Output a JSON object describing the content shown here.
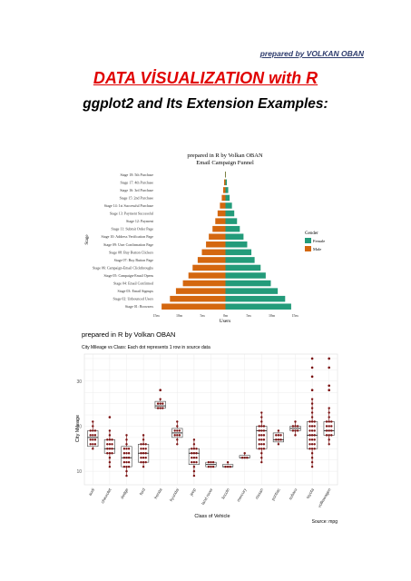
{
  "header": {
    "byline": "prepared by VOLKAN OBAN",
    "title": "DATA VİSUALIZATION with R",
    "subtitle": "ggplot2 and Its Extension Examples:"
  },
  "colors": {
    "red_title": "#e00000",
    "byline_blue": "#2f3d6e",
    "female": "#239b7a",
    "male": "#d4670f",
    "box": "#7a1010"
  },
  "chart_data": [
    {
      "type": "bar",
      "title": "prepared in R by Volkan OBAN",
      "subtitle": "Email Campaign Funnel",
      "xlabel": "Users",
      "ylabel": "Stage",
      "x_ticks": [
        "15m",
        "10m",
        "5m",
        "0m",
        "5m",
        "10m",
        "15m"
      ],
      "xlim": [
        -15,
        15
      ],
      "legend": {
        "title": "Gender",
        "position": "right",
        "entries": [
          "Female",
          "Male"
        ]
      },
      "categories": [
        "Stage 01: Browsers",
        "Stage 02: Unbounced Users",
        "Stage 03: Email Signups",
        "Stage 04: Email Confirmed",
        "Stage 05: Campaign-Email Opens",
        "Stage 06: Campaign-Email Clickthroughs",
        "Stage 07: Buy Button Page",
        "Stage 08: Buy Button Clickers",
        "Stage 09: User Confirmation Page",
        "Stage 10: Address Verification Page",
        "Stage 11: Submit Order Page",
        "Stage 12: Payment",
        "Stage 13: Payment Successful",
        "Stage 14: 1st Successful Purchase",
        "Stage 15: 2nd Purchase",
        "Stage 16: 3rd Purchase",
        "Stage 17: 4th Purchase",
        "Stage 18: 5th Purchase"
      ],
      "series": [
        {
          "name": "Female",
          "values": [
            14.2,
            12.9,
            11.3,
            9.8,
            8.7,
            7.6,
            6.3,
            5.6,
            4.7,
            3.9,
            3.1,
            2.5,
            1.9,
            1.4,
            0.9,
            0.6,
            0.3,
            0.1
          ]
        },
        {
          "name": "Male",
          "values": [
            13.8,
            12.0,
            10.7,
            9.2,
            8.0,
            7.1,
            6.0,
            5.1,
            4.2,
            3.6,
            2.8,
            2.2,
            1.7,
            1.2,
            0.8,
            0.5,
            0.3,
            0.1
          ]
        }
      ]
    },
    {
      "type": "box",
      "plot_title": "prepared in R by Volkan OBAN",
      "subtitle": "City Mileage vs Class: Each dot represents 1 row in source data",
      "xlabel": "Class of Vehicle",
      "ylabel": "City Mileage",
      "caption": "Source: mpg",
      "y_ticks": [
        10,
        20,
        30
      ],
      "ylim": [
        7,
        36
      ],
      "categories": [
        "audi",
        "chevrolet",
        "dodge",
        "ford",
        "honda",
        "hyundai",
        "jeep",
        "land rover",
        "lincoln",
        "mercury",
        "nissan",
        "pontiac",
        "subaru",
        "toyota",
        "volkswagen"
      ],
      "boxes": [
        {
          "q1": 15.5,
          "median": 17.5,
          "q3": 19.0,
          "min": 15,
          "max": 21,
          "outliers": []
        },
        {
          "q1": 14.0,
          "median": 15.0,
          "q3": 17.0,
          "min": 11,
          "max": 19,
          "outliers": [
            22
          ]
        },
        {
          "q1": 11.0,
          "median": 13.0,
          "q3": 15.5,
          "min": 9,
          "max": 18,
          "outliers": []
        },
        {
          "q1": 12.0,
          "median": 14.0,
          "q3": 16.0,
          "min": 11,
          "max": 18,
          "outliers": []
        },
        {
          "q1": 24.0,
          "median": 24.5,
          "q3": 25.5,
          "min": 24,
          "max": 26,
          "outliers": [
            28
          ]
        },
        {
          "q1": 17.5,
          "median": 18.5,
          "q3": 19.5,
          "min": 16,
          "max": 21,
          "outliers": []
        },
        {
          "q1": 11.5,
          "median": 14.0,
          "q3": 15.0,
          "min": 9,
          "max": 17,
          "outliers": []
        },
        {
          "q1": 11.0,
          "median": 11.5,
          "q3": 12.0,
          "min": 11,
          "max": 12,
          "outliers": []
        },
        {
          "q1": 11.0,
          "median": 11.0,
          "q3": 11.5,
          "min": 11,
          "max": 12,
          "outliers": []
        },
        {
          "q1": 13.0,
          "median": 13.0,
          "q3": 13.5,
          "min": 13,
          "max": 14,
          "outliers": []
        },
        {
          "q1": 15.0,
          "median": 19.0,
          "q3": 20.0,
          "min": 12,
          "max": 23,
          "outliers": []
        },
        {
          "q1": 16.5,
          "median": 17.0,
          "q3": 18.5,
          "min": 16,
          "max": 19,
          "outliers": []
        },
        {
          "q1": 19.0,
          "median": 19.5,
          "q3": 20.0,
          "min": 18,
          "max": 21,
          "outliers": []
        },
        {
          "q1": 15.0,
          "median": 18.0,
          "q3": 21.0,
          "min": 11,
          "max": 26,
          "outliers": [
            28,
            31,
            33,
            35
          ]
        },
        {
          "q1": 18.0,
          "median": 19.0,
          "q3": 21.0,
          "min": 16,
          "max": 24,
          "outliers": [
            28,
            29,
            33,
            35
          ]
        }
      ]
    }
  ]
}
